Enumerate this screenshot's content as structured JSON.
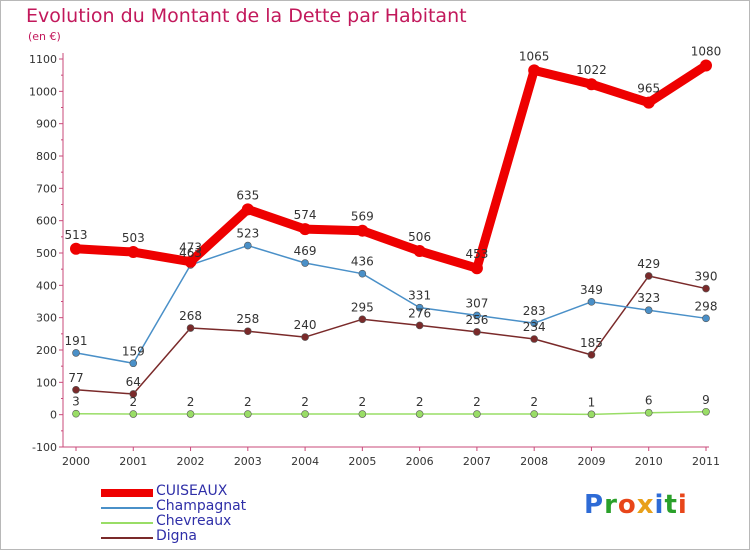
{
  "chart_data": {
    "type": "line",
    "title": "Evolution du Montant de la Dette par Habitant",
    "subtitle": "(en €)",
    "xlabel": "",
    "ylabel": "",
    "categories": [
      "2000",
      "2001",
      "2002",
      "2003",
      "2004",
      "2005",
      "2006",
      "2007",
      "2008",
      "2009",
      "2010",
      "2011"
    ],
    "ylim": [
      -100,
      1100
    ],
    "yticks": [
      -100,
      0,
      100,
      200,
      300,
      400,
      500,
      600,
      700,
      800,
      900,
      1000,
      1100
    ],
    "grid": false,
    "legend_position": "bottom-left",
    "series": [
      {
        "name": "CUISEAUX",
        "color": "#ee0000",
        "values": [
          513,
          503,
          473,
          635,
          574,
          569,
          506,
          453,
          1065,
          1022,
          965,
          1080
        ]
      },
      {
        "name": "Champagnat",
        "color": "#4a90c8",
        "values": [
          191,
          159,
          463,
          523,
          469,
          436,
          331,
          307,
          283,
          349,
          323,
          298
        ]
      },
      {
        "name": "Chevreaux",
        "color": "#99dd66",
        "values": [
          3,
          2,
          2,
          2,
          2,
          2,
          2,
          2,
          2,
          1,
          6,
          9
        ]
      },
      {
        "name": "Digna",
        "color": "#7a2a2a",
        "values": [
          77,
          64,
          268,
          258,
          240,
          295,
          276,
          256,
          234,
          185,
          429,
          390
        ]
      }
    ]
  },
  "logo": {
    "text": "Proxiti",
    "letter_colors": [
      "#2e6bd6",
      "#2aa02a",
      "#e8461a",
      "#e8a01a",
      "#2e6bd6",
      "#2aa02a",
      "#e8461a"
    ]
  }
}
